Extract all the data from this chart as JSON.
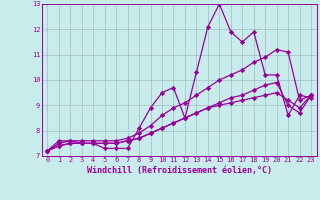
{
  "xlabel": "Windchill (Refroidissement éolien,°C)",
  "ylabel": "",
  "xlim": [
    -0.5,
    23.5
  ],
  "ylim": [
    7,
    13
  ],
  "xticks": [
    0,
    1,
    2,
    3,
    4,
    5,
    6,
    7,
    8,
    9,
    10,
    11,
    12,
    13,
    14,
    15,
    16,
    17,
    18,
    19,
    20,
    21,
    22,
    23
  ],
  "yticks": [
    7,
    8,
    9,
    10,
    11,
    12,
    13
  ],
  "background_color": "#c8ecec",
  "line_color": "#990099",
  "grid_color": "#9fbfbf",
  "series": [
    [
      7.2,
      7.6,
      7.6,
      7.5,
      7.5,
      7.3,
      7.3,
      7.3,
      8.1,
      8.9,
      9.5,
      9.7,
      8.5,
      10.3,
      12.1,
      13.0,
      11.9,
      11.5,
      11.9,
      10.2,
      10.2,
      8.6,
      9.4,
      9.3
    ],
    [
      7.2,
      7.5,
      7.6,
      7.6,
      7.6,
      7.6,
      7.6,
      7.7,
      7.9,
      8.2,
      8.6,
      8.9,
      9.1,
      9.4,
      9.7,
      10.0,
      10.2,
      10.4,
      10.7,
      10.9,
      11.2,
      11.1,
      9.2,
      9.4
    ],
    [
      7.2,
      7.4,
      7.5,
      7.5,
      7.5,
      7.5,
      7.5,
      7.6,
      7.7,
      7.9,
      8.1,
      8.3,
      8.5,
      8.7,
      8.9,
      9.1,
      9.3,
      9.4,
      9.6,
      9.8,
      9.9,
      9.0,
      8.7,
      9.4
    ],
    [
      7.2,
      7.4,
      7.5,
      7.5,
      7.5,
      7.5,
      7.5,
      7.6,
      7.7,
      7.9,
      8.1,
      8.3,
      8.5,
      8.7,
      8.9,
      9.0,
      9.1,
      9.2,
      9.3,
      9.4,
      9.5,
      9.2,
      8.9,
      9.4
    ]
  ],
  "marker": "D",
  "markersize": 2.2,
  "linewidth": 0.9,
  "tick_fontsize": 5.0,
  "label_fontsize": 6.0
}
